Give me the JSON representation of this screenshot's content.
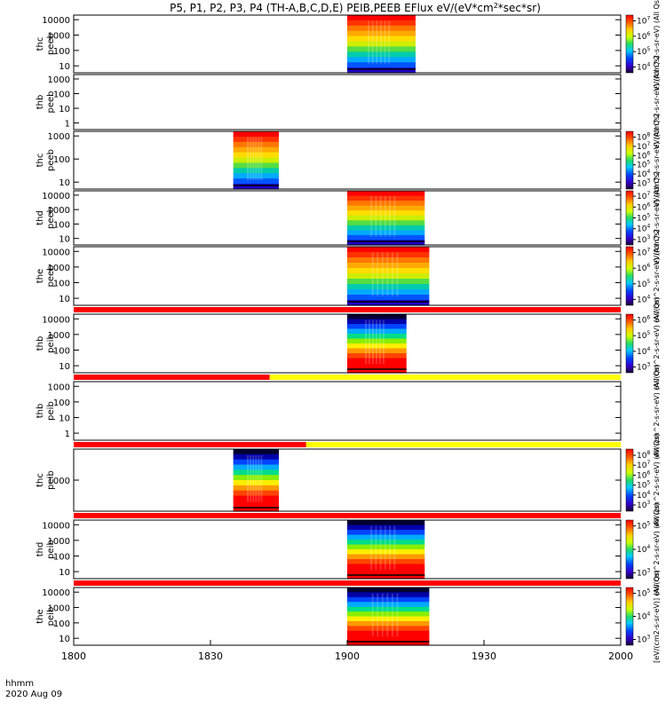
{
  "chart_data": {
    "type": "heatmap",
    "title": "P5, P1, P2, P3, P4 (TH-A,B,C,D,E) PEIB,PEEB EFlux eV/(eV*cm^2*sec*sr)",
    "title_parts": [
      "P5, P1, P2, P3, P4 (TH-A,B,C,D,E) PEIB,PEEB EFlux eV/(eV*cm",
      "2",
      "*sec*sr)"
    ],
    "x_axis": {
      "label_line1": "hhmm",
      "label_line2": "2020 Aug 09",
      "ticks": [
        "1800",
        "1830",
        "1900",
        "1930",
        "2000"
      ],
      "range_hhmm": [
        "1800",
        "2000"
      ]
    },
    "panels": [
      {
        "probe": "thc",
        "product": "peeb",
        "ylabel": [
          "thc",
          "peeb"
        ],
        "yticks": [
          "10",
          "100",
          "1000",
          "10000"
        ],
        "data": true,
        "burst_window": [
          "1900",
          "1915"
        ],
        "cbar": {
          "ticks": [
            [
              "10",
              "4"
            ],
            [
              "10",
              "5"
            ],
            [
              "10",
              "6"
            ],
            [
              "10",
              "7"
            ]
          ],
          "label": "eV/(cm^2-s-sr-eV) (All Qs)"
        }
      },
      {
        "probe": "thb",
        "product": "peeb",
        "ylabel": [
          "thb",
          "peeb"
        ],
        "yticks": [
          "1",
          "10",
          "100",
          "1000"
        ],
        "data": false,
        "cbar": {
          "ticks": [],
          "label": "eV/(cm^2-s-sr-eV) (All Qs)"
        }
      },
      {
        "probe": "thc",
        "product": "peeb",
        "ylabel": [
          "thc",
          "peeb"
        ],
        "yticks": [
          "10",
          "100",
          "1000"
        ],
        "data": true,
        "burst_window": [
          "1835",
          "1845"
        ],
        "cbar": {
          "ticks": [
            [
              "10",
              "3"
            ],
            [
              "10",
              "4"
            ],
            [
              "10",
              "5"
            ],
            [
              "10",
              "6"
            ],
            [
              "10",
              "7"
            ],
            [
              "10",
              "8"
            ]
          ],
          "label": "eV/(cm^2-s-sr-eV) (All Qs)"
        }
      },
      {
        "probe": "thd",
        "product": "peeb",
        "ylabel": [
          "thd",
          "peeb"
        ],
        "yticks": [
          "10",
          "100",
          "1000",
          "10000"
        ],
        "data": true,
        "burst_window": [
          "1900",
          "1917"
        ],
        "cbar": {
          "ticks": [
            [
              "10",
              "3"
            ],
            [
              "10",
              "4"
            ],
            [
              "10",
              "5"
            ],
            [
              "10",
              "6"
            ],
            [
              "10",
              "7"
            ]
          ],
          "label": "eV/(cm^2-s-sr-eV) (All Qs)"
        }
      },
      {
        "probe": "the",
        "product": "peeb",
        "ylabel": [
          "the",
          "peeb"
        ],
        "yticks": [
          "10",
          "100",
          "1000",
          "10000"
        ],
        "data": true,
        "burst_window": [
          "1900",
          "1918"
        ],
        "cbar": {
          "ticks": [
            [
              "10",
              "4"
            ],
            [
              "10",
              "5"
            ],
            [
              "10",
              "6"
            ],
            [
              "10",
              "7"
            ]
          ],
          "label": "eV/(cm^2-s-sr-eV) (All Qs)"
        }
      },
      {
        "probe": "thb",
        "product": "peib",
        "ylabel": [
          "thb",
          "peib"
        ],
        "yticks": [
          "10",
          "100",
          "1000",
          "10000"
        ],
        "data": true,
        "burst_window": [
          "1900",
          "1913"
        ],
        "cbar": {
          "ticks": [
            [
              "10",
              "3"
            ],
            [
              "10",
              "4"
            ],
            [
              "10",
              "5"
            ],
            [
              "10",
              "6"
            ]
          ],
          "label": "eV/(cm^2-s-sr-eV) (All Qs)"
        }
      },
      {
        "probe": "thb",
        "product": "peib",
        "ylabel": [
          "thb",
          "peib"
        ],
        "yticks": [
          "1",
          "10",
          "100",
          "1000"
        ],
        "data": false,
        "cbar": {
          "ticks": [],
          "label": "eV/(cm^2-s-sr-eV) (All Qs)"
        }
      },
      {
        "probe": "thc",
        "product": "peib",
        "ylabel": [
          "thc",
          "peib"
        ],
        "yticks": [
          "1000"
        ],
        "data": true,
        "burst_window": [
          "1835",
          "1845"
        ],
        "cbar": {
          "ticks": [
            [
              "10",
              "3"
            ],
            [
              "10",
              "4"
            ],
            [
              "10",
              "5"
            ],
            [
              "10",
              "6"
            ],
            [
              "10",
              "7"
            ],
            [
              "10",
              "8"
            ]
          ],
          "label": "eV/(cm^2-s-sr-eV) (All Qs)"
        }
      },
      {
        "probe": "thd",
        "product": "peib",
        "ylabel": [
          "thd",
          "peib"
        ],
        "yticks": [
          "10",
          "100",
          "1000",
          "10000"
        ],
        "data": true,
        "burst_window": [
          "1900",
          "1917"
        ],
        "cbar": {
          "ticks": [
            [
              "10",
              "3"
            ],
            [
              "10",
              "4"
            ],
            [
              "10",
              "5"
            ]
          ],
          "label": "eV/(cm^2-s-sr-eV) (All Qs)"
        }
      },
      {
        "probe": "the",
        "product": "peib",
        "ylabel": [
          "the",
          "peib"
        ],
        "yticks": [
          "10",
          "100",
          "1000",
          "10000"
        ],
        "data": true,
        "burst_window": [
          "1900",
          "1918"
        ],
        "cbar": {
          "ticks": [
            [
              "10",
              "3"
            ],
            [
              "10",
              "4"
            ],
            [
              "10",
              "5"
            ]
          ],
          "label": "[eV/(cm2-s-sr-eV)] (All Qs)"
        }
      }
    ],
    "mode_bars": [
      {
        "after_panel": 5,
        "segments": [
          {
            "from": "1800",
            "to": "2000",
            "color": "#ff0000"
          }
        ]
      },
      {
        "after_panel": 6,
        "segments": [
          {
            "from": "1800",
            "to": "1843",
            "color": "#ff0000"
          },
          {
            "from": "1843",
            "to": "2000",
            "color": "#ffff00"
          }
        ]
      },
      {
        "after_panel": 7,
        "segments": [
          {
            "from": "1800",
            "to": "1851",
            "color": "#ff0000"
          },
          {
            "from": "1851",
            "to": "2000",
            "color": "#ffff00"
          }
        ]
      },
      {
        "after_panel": 8,
        "segments": [
          {
            "from": "1800",
            "to": "2000",
            "color": "#ff0000"
          }
        ]
      },
      {
        "after_panel": 9,
        "segments": [
          {
            "from": "1800",
            "to": "2000",
            "color": "#ff0000"
          }
        ]
      }
    ]
  }
}
